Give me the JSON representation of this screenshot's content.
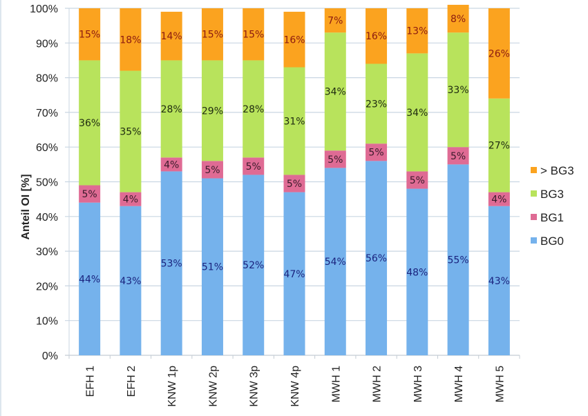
{
  "chart_data": {
    "type": "bar",
    "stacked": true,
    "percent_stacked": true,
    "title": "",
    "xlabel": "",
    "ylabel": "Anteil OI [%]",
    "ylim": [
      0,
      100
    ],
    "y_ticks": [
      "0%",
      "10%",
      "20%",
      "30%",
      "40%",
      "50%",
      "60%",
      "70%",
      "80%",
      "90%",
      "100%"
    ],
    "grid": true,
    "legend_position": "right",
    "categories": [
      "EFH 1",
      "EFH 2",
      "KNW 1p",
      "KNW 2p",
      "KNW 3p",
      "KNW 4p",
      "MWH 1",
      "MWH 2",
      "MWH 3",
      "MWH 4",
      "MWH 5"
    ],
    "series": [
      {
        "name": "BG0",
        "color": "#75b2ec",
        "label_color": "#1a237e",
        "values": [
          44,
          43,
          53,
          51,
          52,
          47,
          54,
          56,
          48,
          55,
          43
        ]
      },
      {
        "name": "BG1",
        "color": "#df6b94",
        "label_color": "#3a1a2a",
        "values": [
          5,
          4,
          4,
          5,
          5,
          5,
          5,
          5,
          5,
          5,
          4
        ]
      },
      {
        "name": "BG3",
        "color": "#b8e35c",
        "label_color": "#1e2a10",
        "values": [
          36,
          35,
          28,
          29,
          28,
          31,
          34,
          23,
          34,
          33,
          27
        ]
      },
      {
        "name": "> BG3",
        "color": "#fba31f",
        "label_color": "#8b1a10",
        "values": [
          15,
          18,
          14,
          15,
          15,
          16,
          7,
          16,
          13,
          8,
          26
        ]
      }
    ],
    "legend_order": [
      "> BG3",
      "BG3",
      "BG1",
      "BG0"
    ]
  }
}
